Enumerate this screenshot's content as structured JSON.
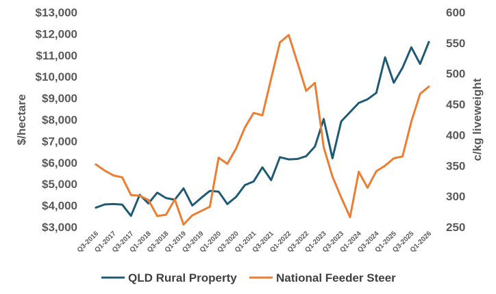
{
  "chart_data": {
    "type": "line",
    "x": [
      "Q3-2016",
      "Q4-2016",
      "Q1-2017",
      "Q2-2017",
      "Q3-2017",
      "Q4-2017",
      "Q1-2018",
      "Q2-2018",
      "Q3-2018",
      "Q4-2018",
      "Q1-2019",
      "Q2-2019",
      "Q3-2019",
      "Q4-2019",
      "Q1-2020",
      "Q2-2020",
      "Q3-2020",
      "Q4-2020",
      "Q1-2021",
      "Q2-2021",
      "Q3-2021",
      "Q4-2021",
      "Q1-2022",
      "Q2-2022",
      "Q3-2022",
      "Q4-2022",
      "Q1-2023",
      "Q2-2023",
      "Q3-2023",
      "Q4-2023",
      "Q1-2024",
      "Q2-2024",
      "Q3-2024",
      "Q4-2024",
      "Q1-2025",
      "Q2-2025",
      "Q3-2025",
      "Q4-2025",
      "Q1-2026"
    ],
    "x_tick_labels": [
      "Q3-2016",
      "Q1-2017",
      "Q3-2017",
      "Q1-2018",
      "Q3-2018",
      "Q1-2019",
      "Q3-2019",
      "Q1-2020",
      "Q3-2020",
      "Q1-2021",
      "Q3-2021",
      "Q1-2022",
      "Q3-2022",
      "Q1-2023",
      "Q3-2023",
      "Q1-2024",
      "Q3-2024",
      "Q1-2025",
      "Q3-2025",
      "Q1-2026"
    ],
    "series": [
      {
        "name": "QLD Rural Property",
        "axis": "left",
        "color": "#1F5A75",
        "values": [
          3900,
          4050,
          4070,
          4040,
          3520,
          4500,
          4100,
          4600,
          4350,
          4270,
          4800,
          4000,
          4350,
          4680,
          4650,
          4070,
          4400,
          4950,
          5120,
          5780,
          5180,
          6250,
          6150,
          6170,
          6300,
          6750,
          8030,
          6200,
          7920,
          8350,
          8780,
          8950,
          9250,
          10900,
          9720,
          10420,
          11370,
          10600,
          11620
        ]
      },
      {
        "name": "National Feeder Steer",
        "axis": "right",
        "color": "#ED7D31",
        "values": [
          352,
          342,
          334,
          331,
          302,
          301,
          294,
          268,
          270,
          295,
          254,
          269,
          276,
          283,
          363,
          353,
          378,
          412,
          436,
          432,
          492,
          551,
          563,
          518,
          472,
          485,
          380,
          332,
          298,
          266,
          340,
          314,
          341,
          350,
          362,
          365,
          422,
          467,
          479
        ]
      }
    ],
    "left_axis": {
      "title": "$/hectare",
      "range": [
        3000,
        13000
      ],
      "ticks": [
        "$3,000",
        "$4,000",
        "$5,000",
        "$6,000",
        "$7,000",
        "$8,000",
        "$9,000",
        "$10,000",
        "$11,000",
        "$12,000",
        "$13,000"
      ]
    },
    "right_axis": {
      "title": "c/kg liveweight",
      "range": [
        250,
        600
      ],
      "ticks": [
        "250",
        "300",
        "350",
        "400",
        "450",
        "500",
        "550",
        "600"
      ]
    },
    "grid": false,
    "legend_position": "bottom"
  }
}
